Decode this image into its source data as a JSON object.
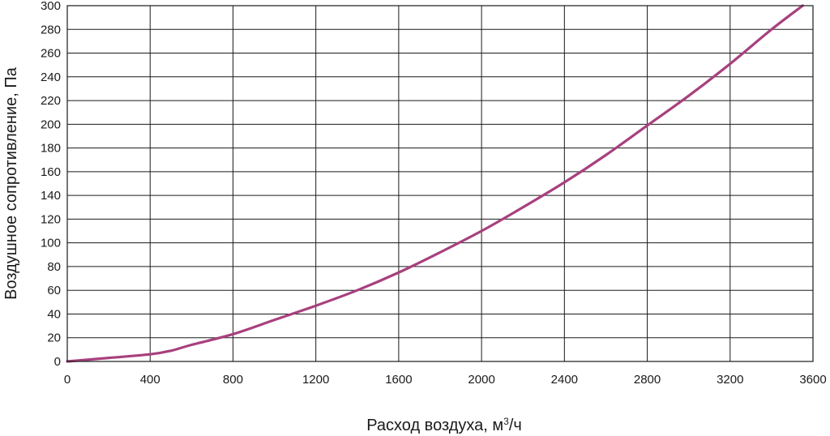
{
  "chart_data": {
    "type": "line",
    "xlabel": "Расход воздуха, м",
    "xlabel_sup": "3",
    "xlabel_suffix": "/ч",
    "ylabel": "Воздушное сопротивление, Па",
    "xlim": [
      0,
      3600
    ],
    "ylim": [
      0,
      300
    ],
    "x_ticks": [
      "0",
      "400",
      "800",
      "1200",
      "1600",
      "2000",
      "2400",
      "2800",
      "3200",
      "3600"
    ],
    "y_ticks": [
      "0",
      "20",
      "40",
      "60",
      "80",
      "100",
      "120",
      "140",
      "160",
      "180",
      "200",
      "220",
      "240",
      "260",
      "280",
      "300"
    ],
    "grid": true,
    "series": [
      {
        "color": "#a8407e",
        "x": [
          0,
          200,
          400,
          500,
          600,
          800,
          1000,
          1200,
          1400,
          1600,
          1800,
          2000,
          2200,
          2400,
          2600,
          2800,
          3000,
          3200,
          3400,
          3550
        ],
        "y": [
          0,
          3,
          6,
          9,
          14,
          23,
          35,
          47,
          60,
          75,
          92,
          110,
          130,
          151,
          174,
          199,
          224,
          251,
          280,
          300
        ]
      }
    ]
  }
}
